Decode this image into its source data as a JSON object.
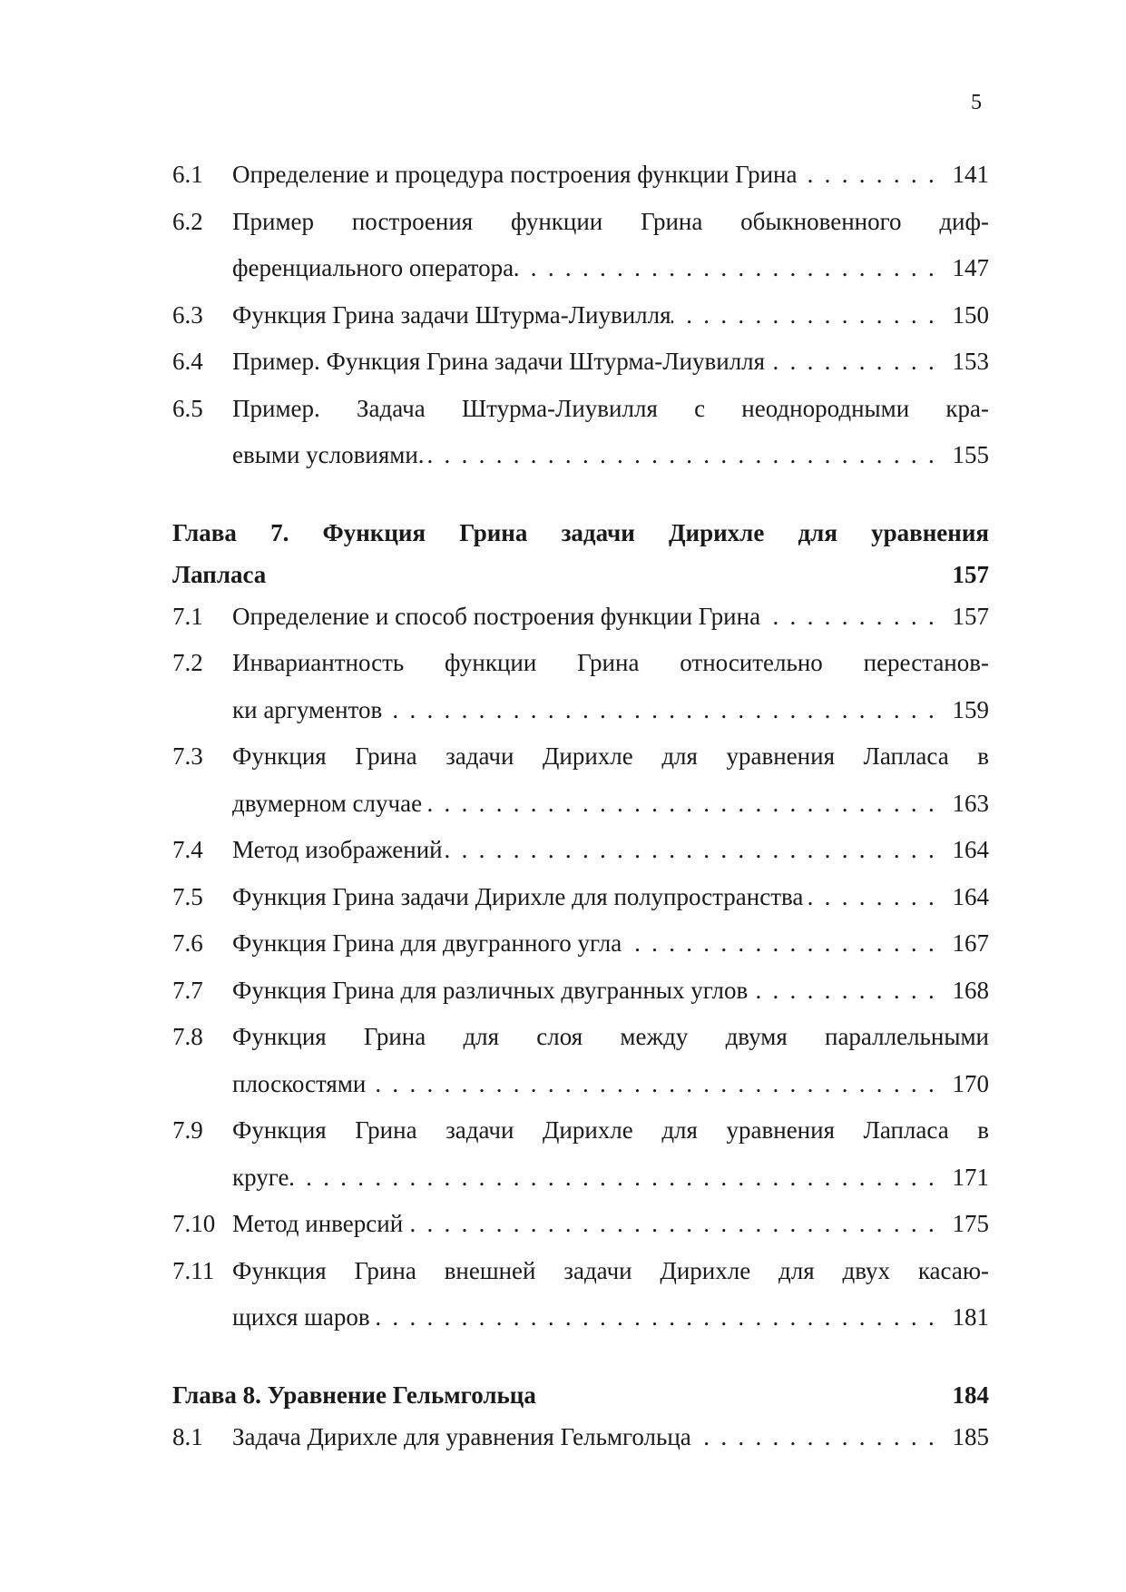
{
  "page_number": "5",
  "sections_before": [
    {
      "num": "6.1",
      "lines": [
        "Определение и процедура построения функции Грина"
      ],
      "page": "141"
    },
    {
      "num": "6.2",
      "lines": [
        "Пример построения функции Грина обыкновенного диф-",
        "ференциального оператора"
      ],
      "page": "147"
    },
    {
      "num": "6.3",
      "lines": [
        "Функция Грина задачи Штурма-Лиувилля"
      ],
      "page": "150"
    },
    {
      "num": "6.4",
      "lines": [
        "Пример. Функция Грина задачи Штурма-Лиувилля"
      ],
      "page": "153"
    },
    {
      "num": "6.5",
      "lines": [
        "Пример. Задача Штурма-Лиувилля с неоднородными кра-",
        "евыми условиями."
      ],
      "page": "155"
    }
  ],
  "chapters": [
    {
      "title_lines": [
        "Глава 7. Функция Грина задачи Дирихле для уравнения",
        "Лапласа"
      ],
      "page": "157",
      "sections": [
        {
          "num": "7.1",
          "lines": [
            "Определение и способ построения функции Грина"
          ],
          "page": "157"
        },
        {
          "num": "7.2",
          "lines": [
            "Инвариантность функции Грина относительно перестанов-",
            "ки аргументов"
          ],
          "page": "159"
        },
        {
          "num": "7.3",
          "lines": [
            "Функция Грина задачи Дирихле для уравнения Лапласа в",
            "двумерном случае"
          ],
          "page": "163"
        },
        {
          "num": "7.4",
          "lines": [
            "Метод изображений"
          ],
          "page": "164"
        },
        {
          "num": "7.5",
          "lines": [
            "Функция Грина задачи Дирихле для полупространства"
          ],
          "page": "164"
        },
        {
          "num": "7.6",
          "lines": [
            "Функция Грина для двугранного угла"
          ],
          "page": "167"
        },
        {
          "num": "7.7",
          "lines": [
            "Функция Грина для различных двугранных углов"
          ],
          "page": "168"
        },
        {
          "num": "7.8",
          "lines": [
            "Функция Грина для слоя между двумя параллельными",
            "плоскостями"
          ],
          "page": "170"
        },
        {
          "num": "7.9",
          "lines": [
            "Функция Грина задачи Дирихле для уравнения Лапласа в",
            "круге"
          ],
          "page": "171"
        },
        {
          "num": "7.10",
          "lines": [
            "Метод инверсий"
          ],
          "page": "175"
        },
        {
          "num": "7.11",
          "lines": [
            "Функция Грина внешней задачи Дирихле для двух касаю-",
            "щихся шаров"
          ],
          "page": "181"
        }
      ]
    },
    {
      "title_lines": [
        "Глава 8. Уравнение Гельмгольца"
      ],
      "page": "184",
      "sections": [
        {
          "num": "8.1",
          "lines": [
            "Задача Дирихле для уравнения Гельмгольца"
          ],
          "page": "185"
        }
      ]
    }
  ]
}
